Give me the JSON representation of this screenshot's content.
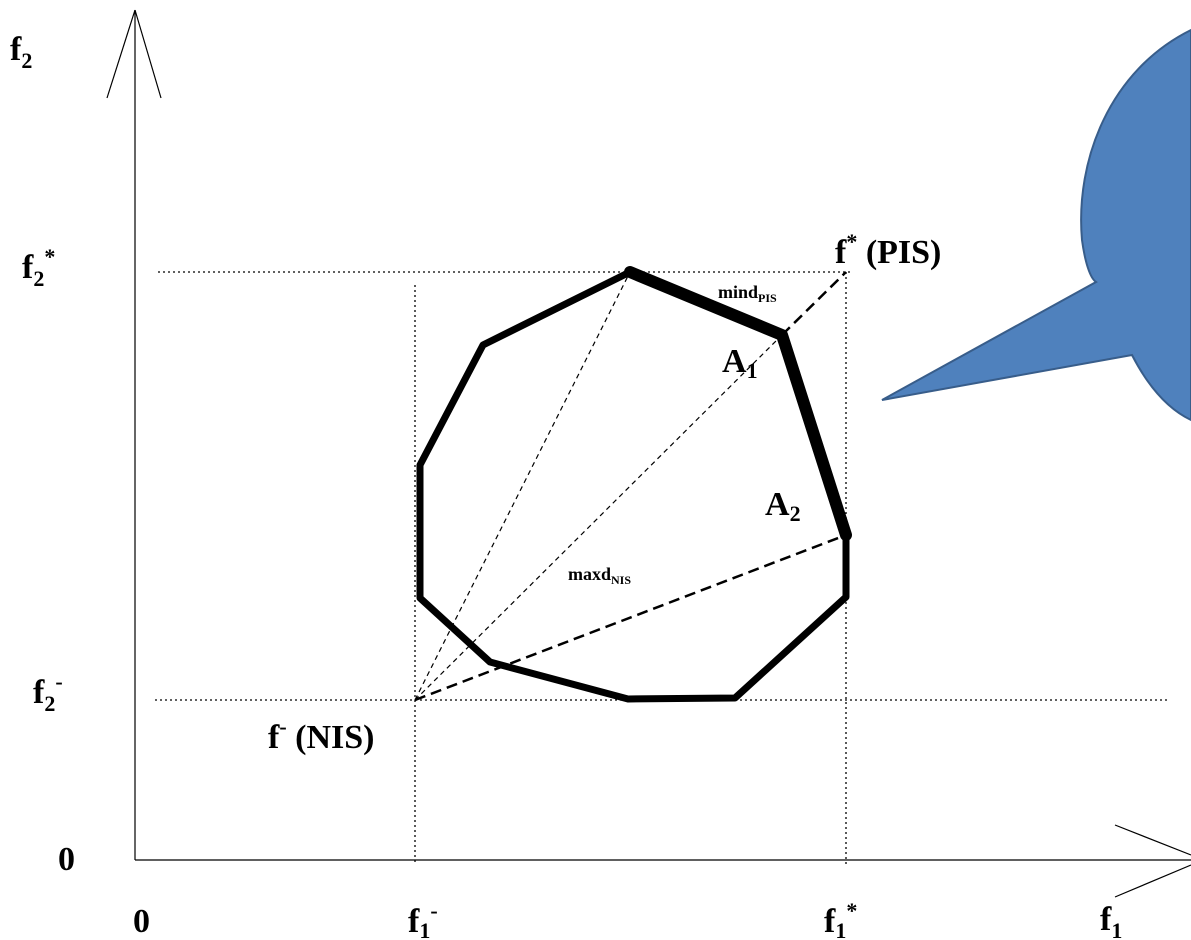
{
  "axes": {
    "y_axis_label": "f",
    "y_axis_label_sub": "2",
    "x_axis_label": "f",
    "x_axis_label_sub": "1",
    "origin_y": "0",
    "origin_x": "0"
  },
  "reference_levels": {
    "f2_star": {
      "base": "f",
      "sub": "2",
      "sup": "*"
    },
    "f2_minus": {
      "base": "f",
      "sub": "2",
      "sup": "-"
    },
    "f1_minus": {
      "base": "f",
      "sub": "1",
      "sup": "-"
    },
    "f1_star": {
      "base": "f",
      "sub": "1",
      "sup": "*"
    }
  },
  "points": {
    "pis": {
      "base": "f",
      "sup": "*",
      "text": " (PIS)"
    },
    "nis": {
      "base": "f",
      "sup": "-",
      "text": " (NIS)"
    },
    "a1": {
      "base": "A",
      "sub": "1"
    },
    "a2": {
      "base": "A",
      "sub": "2"
    }
  },
  "distance_labels": {
    "min_pis": {
      "base": "mind",
      "sub": "PIS"
    },
    "max_nis": {
      "base": "maxd",
      "sub": "NIS"
    }
  },
  "colors": {
    "ink": "#000000",
    "bubble_fill": "#4F81BD",
    "bubble_stroke": "#385D8A"
  }
}
